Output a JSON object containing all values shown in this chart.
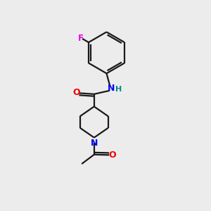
{
  "background_color": "#ececec",
  "bond_color": "#1a1a1a",
  "N_color": "#0000ee",
  "O_color": "#ee0000",
  "F_color": "#ee00ee",
  "NH_color": "#008888",
  "line_width": 1.6,
  "fig_size": [
    3.0,
    3.0
  ],
  "dpi": 100,
  "xlim": [
    0,
    10
  ],
  "ylim": [
    0,
    10
  ]
}
